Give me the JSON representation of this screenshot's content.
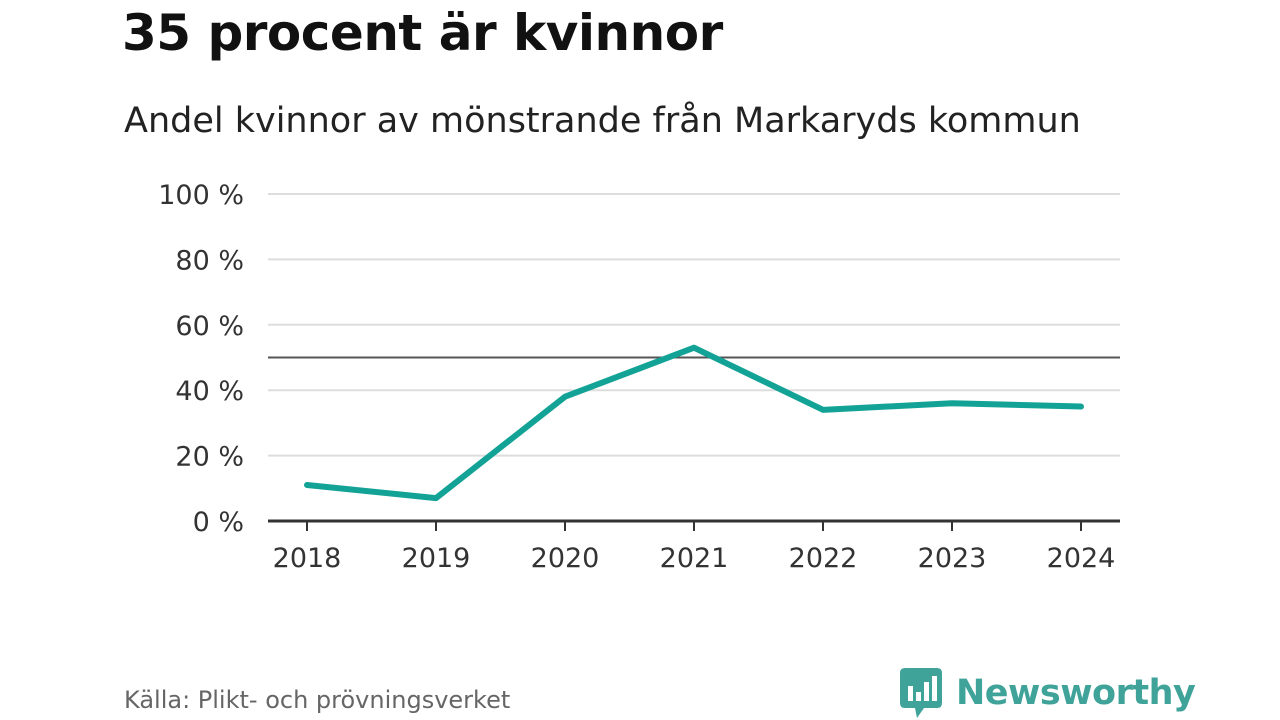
{
  "title": "35 procent är kvinnor",
  "subtitle": "Andel kvinnor av mönstrande från Markaryds kommun",
  "source": "Källa: Plikt- och prövningsverket",
  "brand": {
    "name": "Newsworthy",
    "icon": "newsworthy-logo-icon",
    "color": "#3fa39a"
  },
  "colors": {
    "line": "#12a396",
    "grid": "#dddddd",
    "reference": "#555555",
    "axis": "#333333"
  },
  "chart_data": {
    "type": "line",
    "title": "35 procent är kvinnor",
    "subtitle": "Andel kvinnor av mönstrande från Markaryds kommun",
    "xlabel": "",
    "ylabel": "",
    "categories": [
      "2018",
      "2019",
      "2020",
      "2021",
      "2022",
      "2023",
      "2024"
    ],
    "series": [
      {
        "name": "Andel kvinnor",
        "values": [
          11,
          7,
          38,
          53,
          34,
          36,
          35
        ]
      }
    ],
    "ylim": [
      0,
      100
    ],
    "yticks": [
      0,
      20,
      40,
      60,
      80,
      100
    ],
    "ytick_labels": [
      "0 %",
      "20 %",
      "40 %",
      "60 %",
      "80 %",
      "100 %"
    ],
    "reference_line": 50,
    "grid": true
  }
}
